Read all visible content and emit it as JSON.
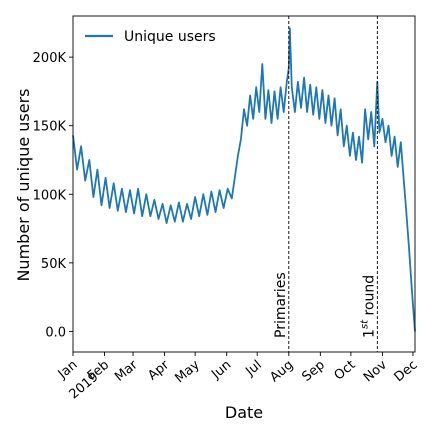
{
  "chart_data": {
    "type": "line",
    "xlabel": "Date",
    "ylabel": "Number of unique users",
    "xlim": [
      "2019-01-01",
      "2019-12-03"
    ],
    "ylim": [
      -15000,
      230000
    ],
    "x_ticks": [
      {
        "date": "2019-01-01",
        "label": "Jan"
      },
      {
        "date": "2019-02-01",
        "label": "Feb"
      },
      {
        "date": "2019-03-01",
        "label": "Mar"
      },
      {
        "date": "2019-04-01",
        "label": "Apr"
      },
      {
        "date": "2019-05-01",
        "label": "May"
      },
      {
        "date": "2019-06-01",
        "label": "Jun"
      },
      {
        "date": "2019-07-01",
        "label": "Jul"
      },
      {
        "date": "2019-08-01",
        "label": "Aug"
      },
      {
        "date": "2019-09-01",
        "label": "Sep"
      },
      {
        "date": "2019-10-01",
        "label": "Oct"
      },
      {
        "date": "2019-11-01",
        "label": "Nov"
      },
      {
        "date": "2019-12-01",
        "label": "Dec"
      }
    ],
    "x_year_label": "2019",
    "y_ticks": [
      {
        "value": 0,
        "label": "0.0"
      },
      {
        "value": 50000,
        "label": "50K"
      },
      {
        "value": 100000,
        "label": "100K"
      },
      {
        "value": 150000,
        "label": "150K"
      },
      {
        "value": 200000,
        "label": "200K"
      }
    ],
    "legend": {
      "placement": "top-left"
    },
    "series": [
      {
        "name": "Unique users",
        "color": "#1f77b4",
        "points": [
          [
            "2019-01-01",
            143000
          ],
          [
            "2019-01-05",
            118000
          ],
          [
            "2019-01-09",
            135000
          ],
          [
            "2019-01-13",
            110000
          ],
          [
            "2019-01-17",
            125000
          ],
          [
            "2019-01-21",
            98000
          ],
          [
            "2019-01-25",
            118000
          ],
          [
            "2019-01-29",
            92000
          ],
          [
            "2019-02-02",
            112000
          ],
          [
            "2019-02-06",
            90000
          ],
          [
            "2019-02-10",
            108000
          ],
          [
            "2019-02-14",
            88000
          ],
          [
            "2019-02-18",
            104000
          ],
          [
            "2019-02-22",
            87000
          ],
          [
            "2019-02-26",
            103000
          ],
          [
            "2019-03-02",
            86000
          ],
          [
            "2019-03-06",
            104000
          ],
          [
            "2019-03-10",
            84000
          ],
          [
            "2019-03-14",
            100000
          ],
          [
            "2019-03-18",
            84000
          ],
          [
            "2019-03-22",
            96000
          ],
          [
            "2019-03-26",
            82000
          ],
          [
            "2019-03-30",
            93000
          ],
          [
            "2019-04-03",
            79000
          ],
          [
            "2019-04-07",
            92000
          ],
          [
            "2019-04-11",
            80000
          ],
          [
            "2019-04-15",
            94000
          ],
          [
            "2019-04-19",
            80000
          ],
          [
            "2019-04-23",
            93000
          ],
          [
            "2019-04-27",
            82000
          ],
          [
            "2019-05-01",
            98000
          ],
          [
            "2019-05-05",
            84000
          ],
          [
            "2019-05-09",
            100000
          ],
          [
            "2019-05-13",
            85000
          ],
          [
            "2019-05-17",
            102000
          ],
          [
            "2019-05-21",
            87000
          ],
          [
            "2019-05-25",
            103000
          ],
          [
            "2019-05-29",
            90000
          ],
          [
            "2019-06-02",
            104000
          ],
          [
            "2019-06-06",
            97000
          ],
          [
            "2019-06-09",
            112000
          ],
          [
            "2019-06-12",
            128000
          ],
          [
            "2019-06-15",
            140000
          ],
          [
            "2019-06-18",
            162000
          ],
          [
            "2019-06-21",
            150000
          ],
          [
            "2019-06-24",
            172000
          ],
          [
            "2019-06-27",
            155000
          ],
          [
            "2019-06-30",
            178000
          ],
          [
            "2019-07-03",
            160000
          ],
          [
            "2019-07-06",
            195000
          ],
          [
            "2019-07-09",
            155000
          ],
          [
            "2019-07-12",
            176000
          ],
          [
            "2019-07-15",
            152000
          ],
          [
            "2019-07-18",
            175000
          ],
          [
            "2019-07-21",
            155000
          ],
          [
            "2019-07-24",
            178000
          ],
          [
            "2019-07-27",
            160000
          ],
          [
            "2019-07-30",
            182000
          ],
          [
            "2019-08-01",
            192000
          ],
          [
            "2019-08-02",
            221000
          ],
          [
            "2019-08-04",
            178000
          ],
          [
            "2019-08-07",
            160000
          ],
          [
            "2019-08-10",
            182000
          ],
          [
            "2019-08-13",
            163000
          ],
          [
            "2019-08-16",
            185000
          ],
          [
            "2019-08-19",
            160000
          ],
          [
            "2019-08-22",
            180000
          ],
          [
            "2019-08-25",
            158000
          ],
          [
            "2019-08-28",
            178000
          ],
          [
            "2019-08-31",
            155000
          ],
          [
            "2019-09-03",
            176000
          ],
          [
            "2019-09-06",
            152000
          ],
          [
            "2019-09-09",
            172000
          ],
          [
            "2019-09-12",
            150000
          ],
          [
            "2019-09-15",
            170000
          ],
          [
            "2019-09-18",
            143000
          ],
          [
            "2019-09-21",
            162000
          ],
          [
            "2019-09-24",
            135000
          ],
          [
            "2019-09-27",
            150000
          ],
          [
            "2019-09-30",
            128000
          ],
          [
            "2019-10-03",
            145000
          ],
          [
            "2019-10-06",
            125000
          ],
          [
            "2019-10-09",
            142000
          ],
          [
            "2019-10-12",
            123000
          ],
          [
            "2019-10-15",
            162000
          ],
          [
            "2019-10-18",
            140000
          ],
          [
            "2019-10-21",
            160000
          ],
          [
            "2019-10-24",
            135000
          ],
          [
            "2019-10-27",
            182000
          ],
          [
            "2019-10-29",
            145000
          ],
          [
            "2019-11-01",
            155000
          ],
          [
            "2019-11-04",
            138000
          ],
          [
            "2019-11-07",
            150000
          ],
          [
            "2019-11-10",
            128000
          ],
          [
            "2019-11-13",
            142000
          ],
          [
            "2019-11-16",
            120000
          ],
          [
            "2019-11-19",
            138000
          ],
          [
            "2019-11-22",
            110000
          ],
          [
            "2019-11-24",
            92000
          ],
          [
            "2019-11-27",
            62000
          ],
          [
            "2019-11-30",
            30000
          ],
          [
            "2019-12-03",
            0
          ]
        ]
      }
    ],
    "annotations": [
      {
        "date": "2019-08-01",
        "text": "Primaries"
      },
      {
        "date": "2019-10-27",
        "text": "1",
        "superscript": "st",
        "text_after": " round"
      }
    ]
  }
}
